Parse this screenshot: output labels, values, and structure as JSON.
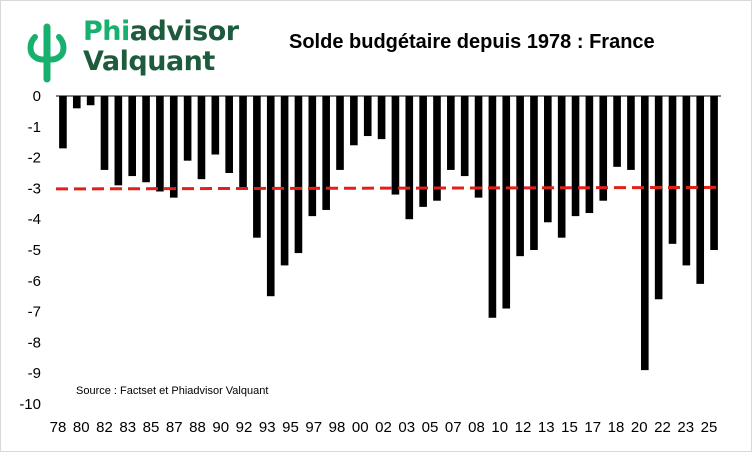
{
  "logo": {
    "line1_a": "Phi",
    "line1_b": "advisor",
    "line2": "Valquant",
    "brand_color": "#17b06f",
    "brand_dark": "#1d5b3c"
  },
  "chart_data": {
    "type": "bar",
    "title": "Solde budgétaire depuis 1978  : France",
    "source": "Source : Factset et Phiadvisor Valquant",
    "xlabel": "",
    "ylabel": "",
    "ylim": [
      -10,
      0
    ],
    "yticks": [
      0,
      -1,
      -2,
      -3,
      -4,
      -5,
      -6,
      -7,
      -8,
      -9,
      -10
    ],
    "bar_color": "#000000",
    "reference_line": {
      "value": -3,
      "style": "dashed",
      "color": "#e0201b"
    },
    "categories": [
      "78",
      "79",
      "80",
      "81",
      "82",
      "83",
      "84",
      "85",
      "86",
      "87",
      "88",
      "89",
      "90",
      "91",
      "92",
      "93",
      "94",
      "95",
      "96",
      "97",
      "98",
      "99",
      "00",
      "01",
      "02",
      "03",
      "04",
      "05",
      "06",
      "07",
      "08",
      "09",
      "10",
      "11",
      "12",
      "13",
      "14",
      "15",
      "16",
      "17",
      "18",
      "19",
      "20",
      "21",
      "22",
      "23",
      "24",
      "25"
    ],
    "x_tick_labels": [
      "78",
      "80",
      "82",
      "83",
      "85",
      "87",
      "88",
      "90",
      "92",
      "93",
      "95",
      "97",
      "98",
      "00",
      "02",
      "03",
      "05",
      "07",
      "08",
      "10",
      "12",
      "13",
      "15",
      "17",
      "18",
      "20",
      "22",
      "23",
      "25"
    ],
    "values": [
      -1.7,
      -0.4,
      -0.3,
      -2.4,
      -2.9,
      -2.6,
      -2.8,
      -3.1,
      -3.3,
      -2.1,
      -2.7,
      -1.9,
      -2.5,
      -3.0,
      -4.6,
      -6.5,
      -5.5,
      -5.1,
      -3.9,
      -3.7,
      -2.4,
      -1.6,
      -1.3,
      -1.4,
      -3.2,
      -4.0,
      -3.6,
      -3.4,
      -2.4,
      -2.6,
      -3.3,
      -7.2,
      -6.9,
      -5.2,
      -5.0,
      -4.1,
      -4.6,
      -3.9,
      -3.8,
      -3.4,
      -2.3,
      -2.4,
      -8.9,
      -6.6,
      -4.8,
      -5.5,
      -6.1,
      -5.0
    ]
  }
}
